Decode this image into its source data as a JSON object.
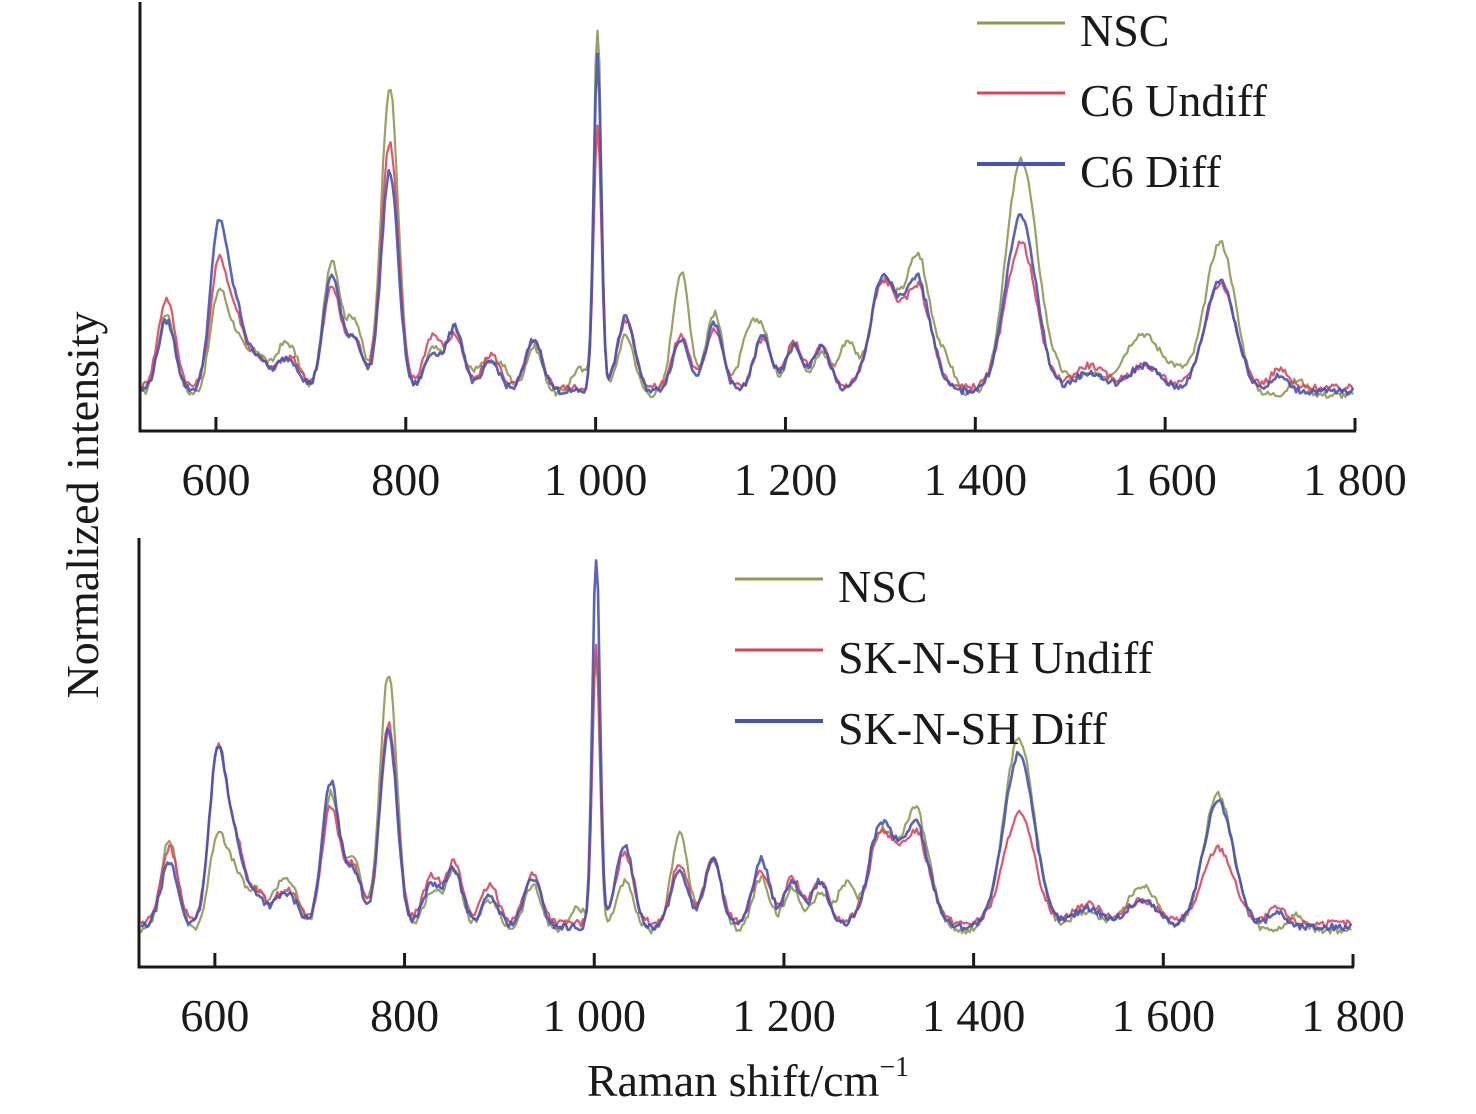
{
  "chart_data": [
    {
      "type": "line",
      "panel": "top",
      "xlabel": "",
      "ylabel": "Normalized intensity",
      "xlim": [
        520,
        1800
      ],
      "ylim": [
        0,
        1
      ],
      "x_ticks": [
        600,
        800,
        1000,
        1200,
        1400,
        1600,
        1800
      ],
      "x_tick_labels": [
        "600",
        "800",
        "1 000",
        "1 200",
        "1 400",
        "1 600",
        "1 800"
      ],
      "grid": false,
      "legend_position": "top-right",
      "series": [
        {
          "name": "NSC",
          "color": "#8c9a4e",
          "peaks": [
            [
              548,
              0.22
            ],
            [
              603,
              0.27
            ],
            [
              622,
              0.14
            ],
            [
              644,
              0.11
            ],
            [
              668,
              0.1
            ],
            [
              682,
              0.09
            ],
            [
              722,
              0.36
            ],
            [
              746,
              0.2
            ],
            [
              783,
              0.83
            ],
            [
              828,
              0.12
            ],
            [
              852,
              0.18
            ],
            [
              880,
              0.08
            ],
            [
              900,
              0.08
            ],
            [
              935,
              0.13
            ],
            [
              983,
              0.07
            ],
            [
              1002,
              1.0
            ],
            [
              1032,
              0.16
            ],
            [
              1090,
              0.33
            ],
            [
              1125,
              0.22
            ],
            [
              1160,
              0.14
            ],
            [
              1176,
              0.16
            ],
            [
              1209,
              0.14
            ],
            [
              1238,
              0.11
            ],
            [
              1265,
              0.14
            ],
            [
              1303,
              0.28
            ],
            [
              1340,
              0.35
            ],
            [
              1370,
              0.07
            ],
            [
              1448,
              0.62
            ],
            [
              1478,
              0.06
            ],
            [
              1520,
              0.05
            ],
            [
              1560,
              0.05
            ],
            [
              1578,
              0.13
            ],
            [
              1610,
              0.06
            ],
            [
              1658,
              0.41
            ],
            [
              1740,
              0.04
            ]
          ],
          "baseline": 0.04
        },
        {
          "name": "C6 Undiff",
          "color": "#e2415a",
          "peaks": [
            [
              548,
              0.24
            ],
            [
              603,
              0.33
            ],
            [
              622,
              0.17
            ],
            [
              644,
              0.08
            ],
            [
              668,
              0.05
            ],
            [
              682,
              0.06
            ],
            [
              722,
              0.27
            ],
            [
              746,
              0.13
            ],
            [
              783,
              0.66
            ],
            [
              828,
              0.14
            ],
            [
              852,
              0.14
            ],
            [
              890,
              0.09
            ],
            [
              935,
              0.12
            ],
            [
              1002,
              0.7
            ],
            [
              1032,
              0.18
            ],
            [
              1090,
              0.14
            ],
            [
              1125,
              0.16
            ],
            [
              1176,
              0.13
            ],
            [
              1209,
              0.12
            ],
            [
              1238,
              0.11
            ],
            [
              1303,
              0.26
            ],
            [
              1340,
              0.25
            ],
            [
              1448,
              0.39
            ],
            [
              1520,
              0.06
            ],
            [
              1578,
              0.06
            ],
            [
              1658,
              0.28
            ],
            [
              1720,
              0.05
            ]
          ],
          "baseline": 0.06
        },
        {
          "name": "C6 Diff",
          "color": "#4652b8",
          "peaks": [
            [
              548,
              0.19
            ],
            [
              603,
              0.44
            ],
            [
              622,
              0.2
            ],
            [
              644,
              0.09
            ],
            [
              668,
              0.06
            ],
            [
              682,
              0.06
            ],
            [
              722,
              0.31
            ],
            [
              746,
              0.14
            ],
            [
              783,
              0.59
            ],
            [
              828,
              0.1
            ],
            [
              852,
              0.17
            ],
            [
              890,
              0.08
            ],
            [
              935,
              0.14
            ],
            [
              1002,
              0.9
            ],
            [
              1032,
              0.2
            ],
            [
              1090,
              0.14
            ],
            [
              1125,
              0.18
            ],
            [
              1176,
              0.15
            ],
            [
              1209,
              0.12
            ],
            [
              1238,
              0.12
            ],
            [
              1303,
              0.28
            ],
            [
              1340,
              0.28
            ],
            [
              1448,
              0.47
            ],
            [
              1520,
              0.05
            ],
            [
              1578,
              0.07
            ],
            [
              1658,
              0.3
            ],
            [
              1720,
              0.04
            ]
          ],
          "baseline": 0.05
        }
      ]
    },
    {
      "type": "line",
      "panel": "bottom",
      "xlabel": "Raman shift/cm⁻¹",
      "ylabel": "Normalized intensity",
      "xlim": [
        520,
        1800
      ],
      "ylim": [
        0,
        1
      ],
      "x_ticks": [
        600,
        800,
        1000,
        1200,
        1400,
        1600,
        1800
      ],
      "x_tick_labels": [
        "600",
        "800",
        "1 000",
        "1 200",
        "1 400",
        "1 600",
        "1 800"
      ],
      "grid": false,
      "legend_position": "top-right",
      "series": [
        {
          "name": "NSC",
          "color": "#8c9a4e",
          "peaks": [
            [
              552,
              0.24
            ],
            [
              603,
              0.25
            ],
            [
              622,
              0.14
            ],
            [
              644,
              0.1
            ],
            [
              668,
              0.1
            ],
            [
              682,
              0.09
            ],
            [
              722,
              0.36
            ],
            [
              746,
              0.19
            ],
            [
              783,
              0.68
            ],
            [
              828,
              0.1
            ],
            [
              852,
              0.16
            ],
            [
              890,
              0.08
            ],
            [
              935,
              0.12
            ],
            [
              983,
              0.06
            ],
            [
              1002,
              0.73
            ],
            [
              1032,
              0.13
            ],
            [
              1090,
              0.26
            ],
            [
              1125,
              0.19
            ],
            [
              1176,
              0.14
            ],
            [
              1209,
              0.11
            ],
            [
              1238,
              0.1
            ],
            [
              1265,
              0.12
            ],
            [
              1303,
              0.24
            ],
            [
              1340,
              0.3
            ],
            [
              1448,
              0.51
            ],
            [
              1520,
              0.05
            ],
            [
              1578,
              0.12
            ],
            [
              1658,
              0.36
            ],
            [
              1740,
              0.04
            ]
          ],
          "baseline": 0.04
        },
        {
          "name": "SK-N-SH Undiff",
          "color": "#e2415a",
          "peaks": [
            [
              552,
              0.2
            ],
            [
              603,
              0.45
            ],
            [
              622,
              0.2
            ],
            [
              644,
              0.08
            ],
            [
              668,
              0.06
            ],
            [
              682,
              0.06
            ],
            [
              722,
              0.31
            ],
            [
              746,
              0.15
            ],
            [
              783,
              0.53
            ],
            [
              828,
              0.12
            ],
            [
              852,
              0.16
            ],
            [
              890,
              0.1
            ],
            [
              935,
              0.13
            ],
            [
              1002,
              0.74
            ],
            [
              1032,
              0.19
            ],
            [
              1090,
              0.16
            ],
            [
              1125,
              0.17
            ],
            [
              1176,
              0.14
            ],
            [
              1209,
              0.12
            ],
            [
              1238,
              0.11
            ],
            [
              1303,
              0.22
            ],
            [
              1340,
              0.22
            ],
            [
              1448,
              0.29
            ],
            [
              1520,
              0.05
            ],
            [
              1578,
              0.06
            ],
            [
              1658,
              0.2
            ],
            [
              1720,
              0.04
            ]
          ],
          "baseline": 0.06
        },
        {
          "name": "SK-N-SH Diff",
          "color": "#4652b8",
          "peaks": [
            [
              552,
              0.17
            ],
            [
              603,
              0.46
            ],
            [
              622,
              0.2
            ],
            [
              644,
              0.08
            ],
            [
              668,
              0.06
            ],
            [
              682,
              0.06
            ],
            [
              722,
              0.38
            ],
            [
              746,
              0.15
            ],
            [
              783,
              0.52
            ],
            [
              828,
              0.11
            ],
            [
              852,
              0.15
            ],
            [
              890,
              0.08
            ],
            [
              935,
              0.13
            ],
            [
              1002,
              1.0
            ],
            [
              1032,
              0.22
            ],
            [
              1090,
              0.15
            ],
            [
              1125,
              0.18
            ],
            [
              1176,
              0.18
            ],
            [
              1209,
              0.12
            ],
            [
              1238,
              0.12
            ],
            [
              1303,
              0.25
            ],
            [
              1340,
              0.25
            ],
            [
              1448,
              0.46
            ],
            [
              1520,
              0.05
            ],
            [
              1578,
              0.07
            ],
            [
              1658,
              0.33
            ],
            [
              1720,
              0.04
            ]
          ],
          "baseline": 0.05
        }
      ]
    }
  ],
  "figure": {
    "ylabel": "Normalized intensity",
    "xlabel_main": "Raman shift/cm",
    "xlabel_sup": "−1"
  },
  "legends": {
    "top": [
      "NSC",
      "C6 Undiff",
      "C6 Diff"
    ],
    "bottom": [
      "NSC",
      "SK-N-SH Undiff",
      "SK-N-SH Diff"
    ]
  }
}
